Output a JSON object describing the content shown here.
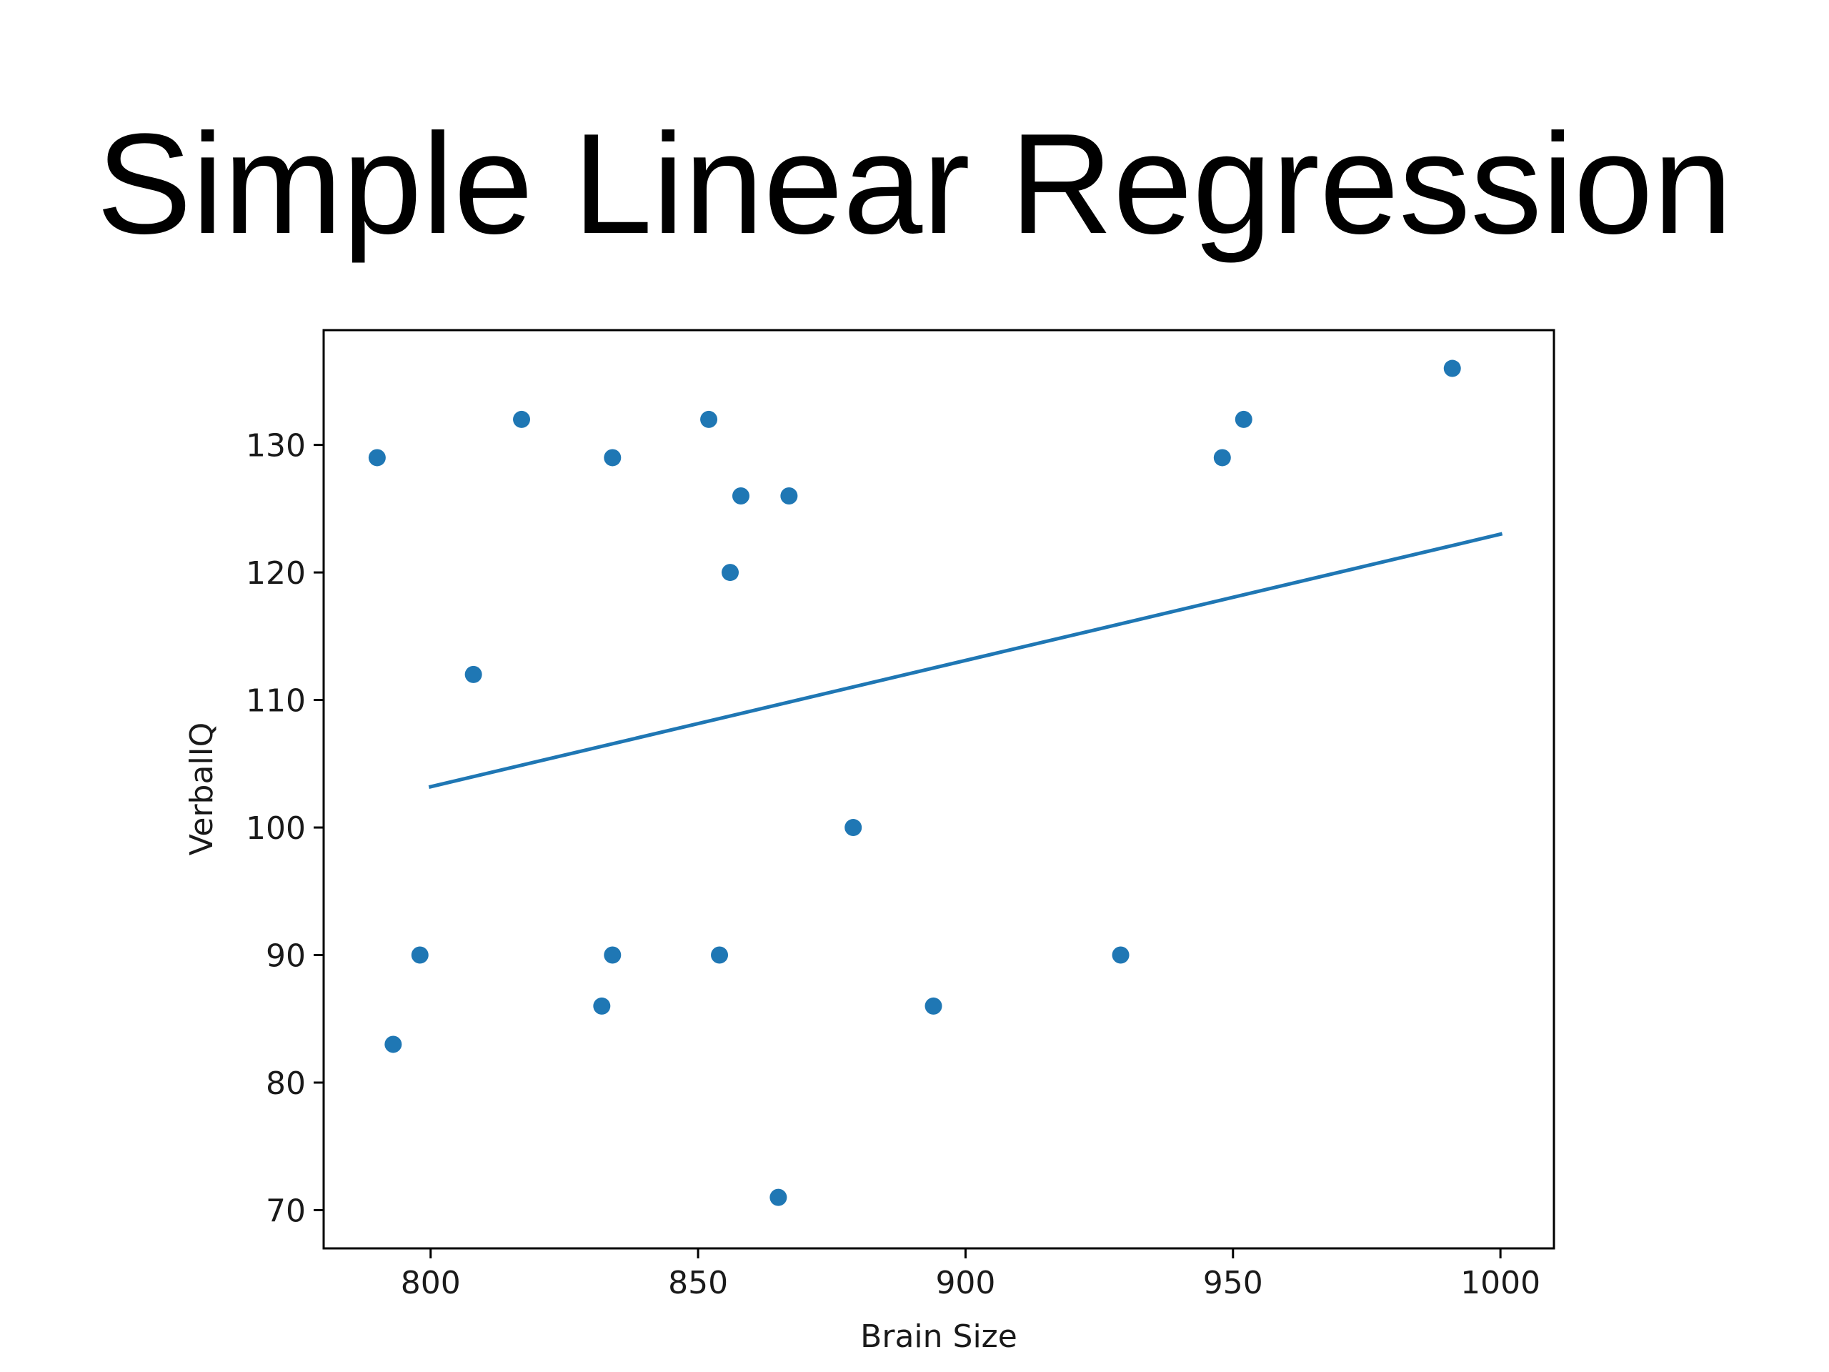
{
  "title": "Simple Linear Regression",
  "chart_data": {
    "type": "scatter",
    "title": "Simple Linear Regression",
    "xlabel": "Brain Size",
    "ylabel": "VerbalIQ",
    "xlim": [
      780,
      1010
    ],
    "ylim": [
      67,
      139
    ],
    "x_ticks": [
      800,
      850,
      900,
      950,
      1000
    ],
    "y_ticks": [
      70,
      80,
      90,
      100,
      110,
      120,
      130
    ],
    "grid": false,
    "legend": "none",
    "point_color": "#1f77b4",
    "line_color": "#1f77b4",
    "points": [
      {
        "x": 790,
        "y": 129
      },
      {
        "x": 793,
        "y": 83
      },
      {
        "x": 798,
        "y": 90
      },
      {
        "x": 808,
        "y": 112
      },
      {
        "x": 817,
        "y": 132
      },
      {
        "x": 832,
        "y": 86
      },
      {
        "x": 834,
        "y": 129
      },
      {
        "x": 834,
        "y": 90
      },
      {
        "x": 852,
        "y": 132
      },
      {
        "x": 854,
        "y": 90
      },
      {
        "x": 856,
        "y": 120
      },
      {
        "x": 858,
        "y": 126
      },
      {
        "x": 865,
        "y": 71
      },
      {
        "x": 867,
        "y": 126
      },
      {
        "x": 879,
        "y": 100
      },
      {
        "x": 894,
        "y": 86
      },
      {
        "x": 929,
        "y": 90
      },
      {
        "x": 948,
        "y": 129
      },
      {
        "x": 952,
        "y": 132
      },
      {
        "x": 991,
        "y": 136
      }
    ],
    "regression_line": [
      {
        "x": 800,
        "y": 103.2
      },
      {
        "x": 1000,
        "y": 123.0
      }
    ]
  }
}
